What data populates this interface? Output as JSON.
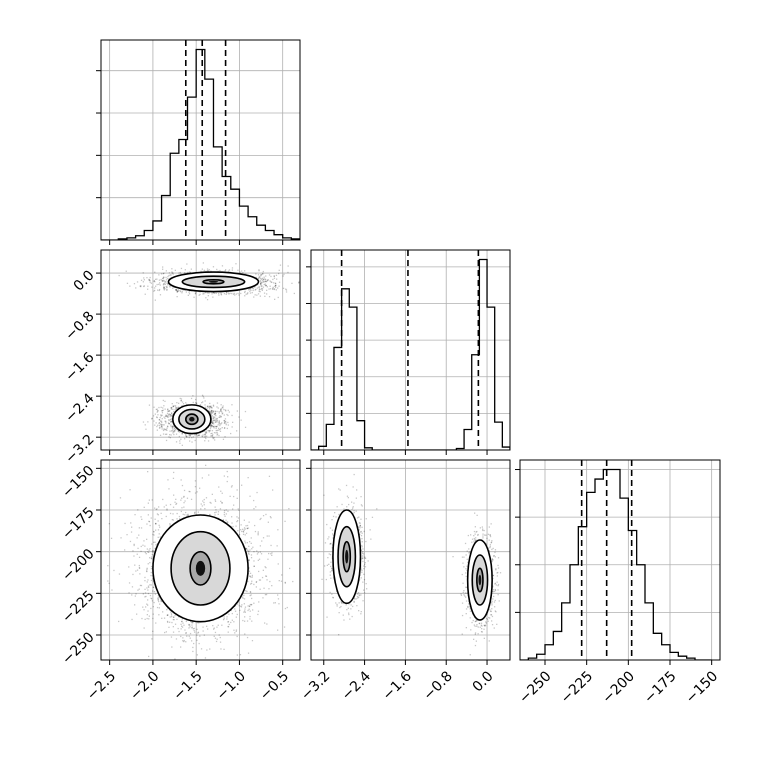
{
  "chart_data": {
    "type": "corner",
    "grid": true,
    "parameters": [
      {
        "range": [
          -2.6,
          -0.3
        ],
        "ticks": [
          -2.5,
          -2.0,
          -1.5,
          -1.0,
          -0.5
        ],
        "tick_labels": [
          "−2.5",
          "−2.0",
          "−1.5",
          "−1.0",
          "−0.5"
        ],
        "quantiles": [
          -1.62,
          -1.43,
          -1.16
        ],
        "histogram": {
          "edges": [
            -2.6,
            -2.5,
            -2.4,
            -2.3,
            -2.2,
            -2.1,
            -2.0,
            -1.9,
            -1.8,
            -1.7,
            -1.6,
            -1.5,
            -1.4,
            -1.3,
            -1.2,
            -1.1,
            -1.0,
            -0.9,
            -0.8,
            -0.7,
            -0.6,
            -0.5,
            -0.4,
            -0.3
          ],
          "counts": [
            0,
            0,
            1,
            2,
            4,
            9,
            18,
            42,
            82,
            95,
            135,
            180,
            152,
            88,
            60,
            48,
            32,
            22,
            14,
            9,
            5,
            2,
            1
          ]
        }
      },
      {
        "range": [
          -3.45,
          0.45
        ],
        "ticks": [
          -3.2,
          -2.4,
          -1.6,
          -0.8,
          0.0
        ],
        "tick_labels": [
          "−3.2",
          "−2.4",
          "−1.6",
          "−0.8",
          "0.0"
        ],
        "quantiles": [
          -2.85,
          -1.55,
          -0.17
        ],
        "histogram": {
          "edges": [
            -3.45,
            -3.3,
            -3.15,
            -3.0,
            -2.85,
            -2.7,
            -2.55,
            -2.4,
            -2.25,
            -2.1,
            -1.95,
            -1.8,
            -1.65,
            -1.5,
            -1.35,
            -1.2,
            -1.05,
            -0.9,
            -0.75,
            -0.6,
            -0.45,
            -0.3,
            -0.15,
            0.0,
            0.15,
            0.3,
            0.45
          ],
          "counts": [
            0,
            5,
            35,
            140,
            220,
            195,
            40,
            3,
            0,
            0,
            0,
            0,
            0,
            0,
            0,
            0,
            0,
            0,
            0,
            2,
            28,
            130,
            260,
            195,
            38,
            4
          ]
        }
      },
      {
        "range": [
          -265,
          -145
        ],
        "ticks": [
          -250,
          -225,
          -200,
          -175,
          -150
        ],
        "tick_labels": [
          "−250",
          "−225",
          "−200",
          "−175",
          "−150"
        ],
        "quantiles": [
          -228,
          -213,
          -198
        ],
        "histogram": {
          "edges": [
            -265,
            -260,
            -255,
            -250,
            -245,
            -240,
            -235,
            -230,
            -225,
            -220,
            -215,
            -210,
            -205,
            -200,
            -195,
            -190,
            -185,
            -180,
            -175,
            -170,
            -165,
            -160,
            -155,
            -150
          ],
          "counts": [
            0,
            1,
            3,
            8,
            15,
            30,
            50,
            70,
            88,
            95,
            100,
            100,
            85,
            68,
            50,
            30,
            14,
            8,
            4,
            2,
            1,
            0,
            0
          ]
        }
      }
    ],
    "panels_2d": [
      {
        "x_param": 0,
        "y_param": 1,
        "clusters": [
          {
            "center": [
              -1.3,
              -0.17
            ],
            "sigma": [
              0.3,
              0.1
            ],
            "weight": 0.5,
            "contours": [
              [
                0.52,
                0.19
              ],
              [
                0.36,
                0.11
              ],
              [
                0.12,
                0.04
              ]
            ]
          },
          {
            "center": [
              -1.55,
              -2.85
            ],
            "sigma": [
              0.16,
              0.14
            ],
            "weight": 0.5,
            "contours": [
              [
                0.22,
                0.28
              ],
              [
                0.15,
                0.19
              ],
              [
                0.07,
                0.1
              ]
            ]
          }
        ]
      },
      {
        "x_param": 0,
        "y_param": 2,
        "clusters": [
          {
            "center": [
              -1.45,
              -210
            ],
            "sigma": [
              0.3,
              17
            ],
            "weight": 1.0,
            "contours": [
              [
                0.55,
                32
              ],
              [
                0.34,
                22
              ],
              [
                0.12,
                10
              ]
            ]
          }
        ]
      },
      {
        "x_param": 1,
        "y_param": 2,
        "clusters": [
          {
            "center": [
              -2.75,
              -203
            ],
            "sigma": [
              0.13,
              12
            ],
            "weight": 0.5,
            "contours": [
              [
                0.27,
                28
              ],
              [
                0.17,
                18
              ],
              [
                0.07,
                9
              ]
            ]
          },
          {
            "center": [
              -0.14,
              -217
            ],
            "sigma": [
              0.11,
              11
            ],
            "weight": 0.5,
            "contours": [
              [
                0.24,
                24
              ],
              [
                0.15,
                15
              ],
              [
                0.06,
                7
              ]
            ]
          }
        ]
      }
    ]
  }
}
